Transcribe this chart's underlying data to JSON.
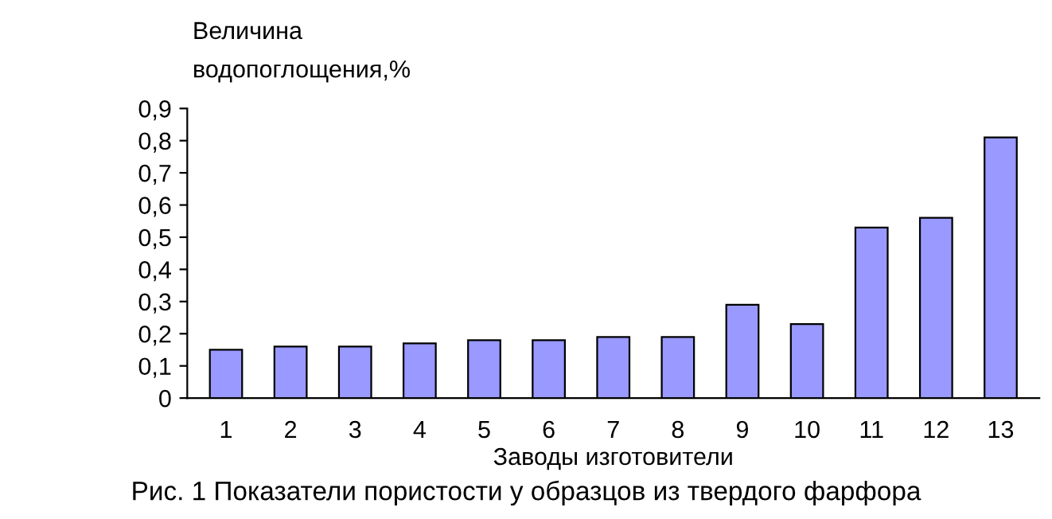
{
  "chart_data": {
    "type": "bar",
    "ylabel": "Величина\nводопоглощения,%",
    "xlabel": "Заводы изготовители",
    "annotations": [
      "Рис. 1 Показатели пористости у образцов из твердого фарфора"
    ],
    "categories": [
      "1",
      "2",
      "3",
      "4",
      "5",
      "6",
      "7",
      "8",
      "9",
      "10",
      "11",
      "12",
      "13"
    ],
    "values": [
      0.15,
      0.16,
      0.16,
      0.17,
      0.18,
      0.18,
      0.19,
      0.19,
      0.29,
      0.23,
      0.53,
      0.56,
      0.81
    ],
    "color": "#9999ff",
    "ylim": [
      0,
      0.9
    ],
    "yticks": [
      {
        "value": 0,
        "label": "0"
      },
      {
        "value": 0.1,
        "label": "0,1"
      },
      {
        "value": 0.2,
        "label": "0,2"
      },
      {
        "value": 0.3,
        "label": "0,3"
      },
      {
        "value": 0.4,
        "label": "0,4"
      },
      {
        "value": 0.5,
        "label": "0,5"
      },
      {
        "value": 0.6,
        "label": "0,6"
      },
      {
        "value": 0.7,
        "label": "0,7"
      },
      {
        "value": 0.8,
        "label": "0,8"
      },
      {
        "value": 0.9,
        "label": "0,9"
      }
    ],
    "grid": false,
    "legend": false
  }
}
